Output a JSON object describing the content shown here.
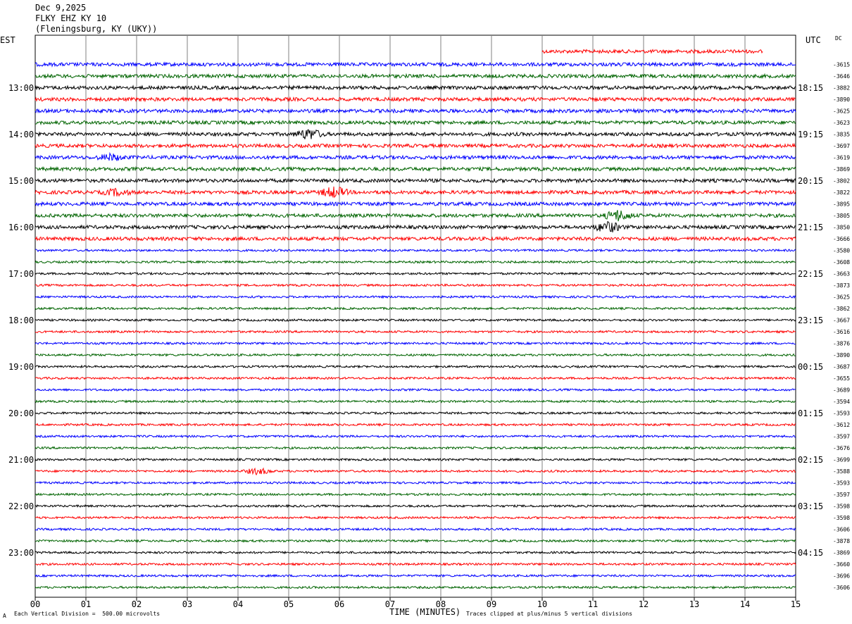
{
  "header": {
    "date": "Dec 9,2025",
    "station": "FLKY EHZ KY 10",
    "location": "(Fleningsburg, KY (UKY))"
  },
  "corner_labels": {
    "left": "EST",
    "right": "UTC",
    "dc": "DC"
  },
  "footer": {
    "scale_note": "Each Vertical Division =  500.00 microvolts",
    "xlabel": "TIME (MINUTES)",
    "clip_note": "Traces clipped at plus/minus 5 vertical divisions",
    "corner_mark": "A"
  },
  "colors": {
    "cycle": [
      "#000000",
      "#ff0000",
      "#0000ff",
      "#006400"
    ],
    "grid": "#808080"
  },
  "chart_data": {
    "type": "line",
    "title": "FLKY EHZ KY 10",
    "xlabel": "TIME (MINUTES)",
    "x_ticks": [
      "00",
      "01",
      "02",
      "03",
      "04",
      "05",
      "06",
      "07",
      "08",
      "09",
      "10",
      "11",
      "12",
      "13",
      "14",
      "15"
    ],
    "xlim": [
      0,
      15
    ],
    "left_hour_labels": [
      "13:00",
      "14:00",
      "15:00",
      "16:00",
      "17:00",
      "18:00",
      "19:00",
      "20:00",
      "21:00",
      "22:00",
      "23:00"
    ],
    "right_hour_labels": [
      "18:15",
      "19:15",
      "20:15",
      "21:15",
      "22:15",
      "23:15",
      "00:15",
      "01:15",
      "02:15",
      "03:15",
      "04:15"
    ],
    "dc_offsets": [
      "3615",
      "3646",
      "3882",
      "3890",
      "3625",
      "3623",
      "3835",
      "3697",
      "3619",
      "3869",
      "3802",
      "3822",
      "3895",
      "3805",
      "3850",
      "3666",
      "3580",
      "3608",
      "3663",
      "3873",
      "3625",
      "3862",
      "3667",
      "3616",
      "3876",
      "3890",
      "3687",
      "3655",
      "3689",
      "3594",
      "3593",
      "3612",
      "3597",
      "3676",
      "3699",
      "3588",
      "3593",
      "3597",
      "3598",
      "3598",
      "3606",
      "3878",
      "3869",
      "3660",
      "3696",
      "3606"
    ],
    "trace_count": 47,
    "events": [
      {
        "trace": 6,
        "minute": 5.4,
        "amplitude": "high"
      },
      {
        "trace": 8,
        "minute": 1.5,
        "amplitude": "medium"
      },
      {
        "trace": 11,
        "minute": 5.9,
        "amplitude": "high"
      },
      {
        "trace": 11,
        "minute": 1.6,
        "amplitude": "medium"
      },
      {
        "trace": 13,
        "minute": 11.5,
        "amplitude": "high"
      },
      {
        "trace": 14,
        "minute": 11.3,
        "amplitude": "high"
      },
      {
        "trace": 35,
        "minute": 4.4,
        "amplitude": "medium"
      }
    ]
  }
}
